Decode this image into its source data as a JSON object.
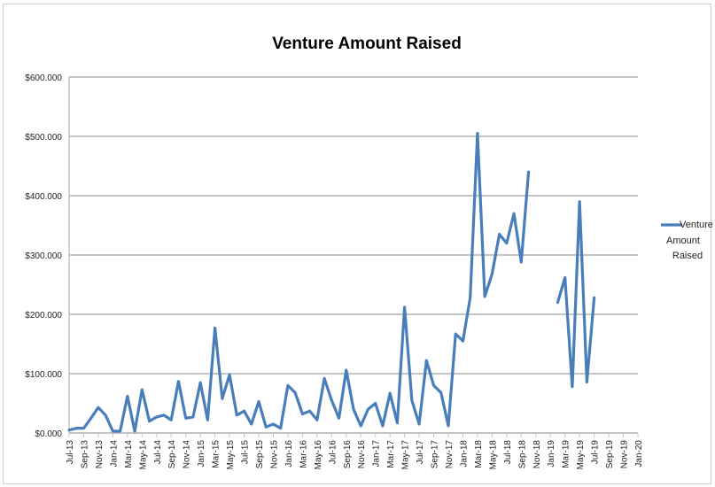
{
  "chart_data": {
    "type": "line",
    "title": "Venture Amount Raised",
    "xlabel": "",
    "ylabel": "",
    "ylim": [
      0,
      600000
    ],
    "y_ticks": [
      0,
      100000,
      200000,
      300000,
      400000,
      500000,
      600000
    ],
    "y_tick_labels": [
      "$0.000",
      "$100.000",
      "$200.000",
      "$300.000",
      "$400.000",
      "$500.000",
      "$600.000"
    ],
    "grid": "horizontal",
    "legend_position": "right",
    "color": "#4a7ebb",
    "x_tick_labels": [
      "Jul-13",
      "Sep-13",
      "Nov-13",
      "Jan-14",
      "Mar-14",
      "May-14",
      "Jul-14",
      "Sep-14",
      "Nov-14",
      "Jan-15",
      "Mar-15",
      "May-15",
      "Jul-15",
      "Sep-15",
      "Nov-15",
      "Jan-16",
      "Mar-16",
      "May-16",
      "Jul-16",
      "Sep-16",
      "Nov-16",
      "Jan-17",
      "Mar-17",
      "May-17",
      "Jul-17",
      "Sep-17",
      "Nov-17",
      "Jan-18",
      "Mar-18",
      "May-18",
      "Jul-18",
      "Sep-18",
      "Nov-18",
      "Jan-19",
      "Mar-19",
      "May-19",
      "Jul-19",
      "Sep-19",
      "Nov-19",
      "Jan-20"
    ],
    "series": [
      {
        "name": "Venture Amount Raised",
        "x": [
          "Jul-13",
          "Aug-13",
          "Sep-13",
          "Oct-13",
          "Nov-13",
          "Dec-13",
          "Jan-14",
          "Feb-14",
          "Mar-14",
          "Apr-14",
          "May-14",
          "Jun-14",
          "Jul-14",
          "Aug-14",
          "Sep-14",
          "Oct-14",
          "Nov-14",
          "Dec-14",
          "Jan-15",
          "Feb-15",
          "Mar-15",
          "Apr-15",
          "May-15",
          "Jun-15",
          "Jul-15",
          "Aug-15",
          "Sep-15",
          "Oct-15",
          "Nov-15",
          "Dec-15",
          "Jan-16",
          "Feb-16",
          "Mar-16",
          "Apr-16",
          "May-16",
          "Jun-16",
          "Jul-16",
          "Aug-16",
          "Sep-16",
          "Oct-16",
          "Nov-16",
          "Dec-16",
          "Jan-17",
          "Feb-17",
          "Mar-17",
          "Apr-17",
          "May-17",
          "Jun-17",
          "Jul-17",
          "Aug-17",
          "Sep-17",
          "Oct-17",
          "Nov-17",
          "Dec-17",
          "Jan-18",
          "Feb-18",
          "Mar-18",
          "Apr-18",
          "May-18",
          "Jun-18",
          "Jul-18",
          "Aug-18",
          "Sep-18",
          "Oct-18",
          "Nov-18",
          "Dec-18",
          "Jan-19",
          "Feb-19",
          "Mar-19",
          "Apr-19",
          "May-19",
          "Jun-19",
          "Jul-19",
          "Aug-19",
          "Sep-19",
          "Oct-19",
          "Nov-19",
          "Dec-19",
          "Jan-20"
        ],
        "values": [
          5000,
          8000,
          8000,
          25000,
          43000,
          30000,
          3000,
          3000,
          62000,
          3000,
          73000,
          20000,
          27000,
          30000,
          22000,
          87000,
          25000,
          27000,
          85000,
          22000,
          177000,
          58000,
          98000,
          30000,
          37000,
          15000,
          53000,
          10000,
          15000,
          8000,
          80000,
          68000,
          32000,
          37000,
          22000,
          92000,
          55000,
          25000,
          106000,
          40000,
          12000,
          40000,
          50000,
          12000,
          67000,
          17000,
          212000,
          55000,
          15000,
          122000,
          80000,
          68000,
          12000,
          167000,
          155000,
          228000,
          505000,
          230000,
          268000,
          335000,
          320000,
          370000,
          288000,
          440000,
          null,
          null,
          null,
          220000,
          262000,
          78000,
          390000,
          86000,
          228000,
          null,
          null,
          null,
          null,
          null,
          null
        ]
      }
    ]
  }
}
